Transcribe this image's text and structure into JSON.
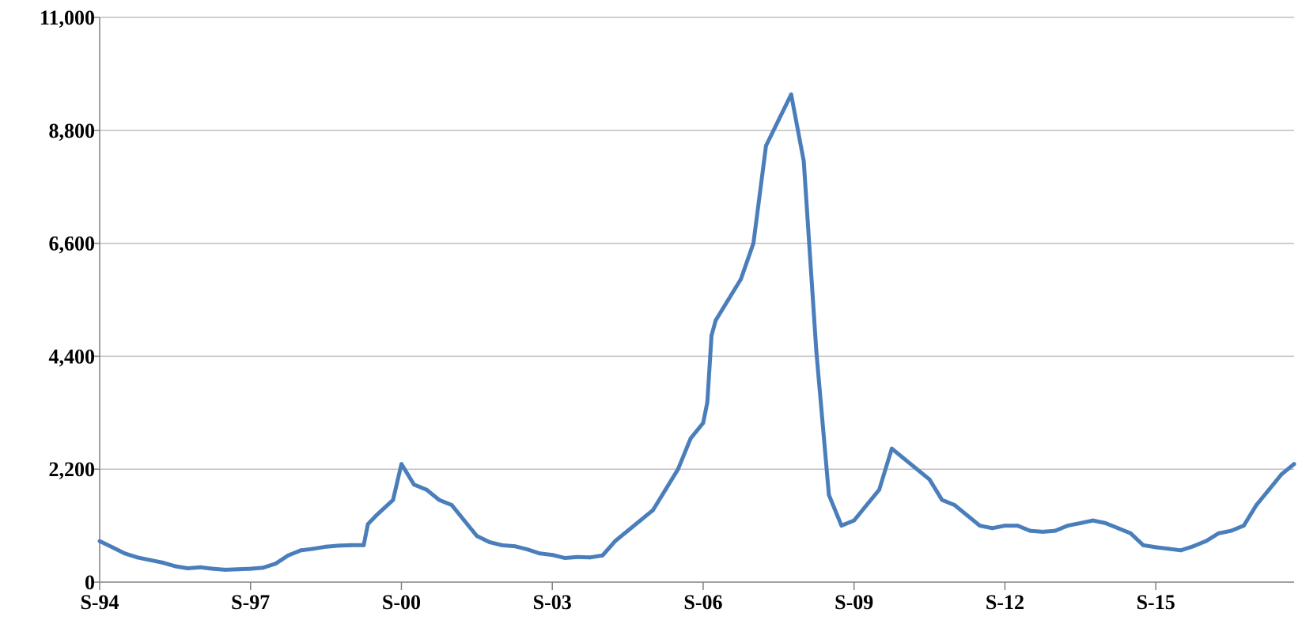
{
  "chart_data": {
    "type": "line",
    "title": "",
    "xlabel": "",
    "ylabel": "",
    "ylim": [
      0,
      11000
    ],
    "xlim": [
      "1994-09",
      "2018-06"
    ],
    "grid": {
      "horizontal": true,
      "vertical": false
    },
    "legend": "none",
    "y_ticks": [
      0,
      2200,
      4400,
      6600,
      8800,
      11000
    ],
    "y_tick_labels": [
      "0",
      "2,200",
      "4,400",
      "6,600",
      "8,800",
      "11,000"
    ],
    "x_ticks": [
      "1994-09",
      "1997-09",
      "2000-09",
      "2003-09",
      "2006-09",
      "2009-09",
      "2012-09",
      "2015-09"
    ],
    "x_tick_labels": [
      "S-94",
      "S-97",
      "S-00",
      "S-03",
      "S-06",
      "S-09",
      "S-12",
      "S-15"
    ],
    "colors": {
      "line": "#4a7ebb",
      "grid": "#bfbfbf",
      "axis": "#808080"
    },
    "series": [
      {
        "x": [
          "1994-09",
          "1994-12",
          "1995-03",
          "1995-06",
          "1995-09",
          "1995-12",
          "1996-03",
          "1996-06",
          "1996-09",
          "1996-12",
          "1997-03",
          "1997-06",
          "1997-09",
          "1997-12",
          "1998-03",
          "1998-06",
          "1998-09",
          "1998-12",
          "1999-03",
          "1999-06",
          "1999-09",
          "1999-12",
          "2000-01",
          "2000-03",
          "2000-05",
          "2000-07",
          "2000-09",
          "2000-12",
          "2001-03",
          "2001-06",
          "2001-09",
          "2001-12",
          "2002-03",
          "2002-06",
          "2002-09",
          "2002-12",
          "2003-03",
          "2003-06",
          "2003-09",
          "2003-12",
          "2004-03",
          "2004-06",
          "2004-09",
          "2004-12",
          "2005-03",
          "2005-06",
          "2005-09",
          "2005-12",
          "2006-03",
          "2006-06",
          "2006-09",
          "2006-10",
          "2006-11",
          "2006-12",
          "2007-03",
          "2007-06",
          "2007-09",
          "2007-12",
          "2008-03",
          "2008-06",
          "2008-09",
          "2008-12",
          "2009-03",
          "2009-06",
          "2009-09",
          "2009-12",
          "2010-03",
          "2010-06",
          "2010-09",
          "2010-12",
          "2011-03",
          "2011-06",
          "2011-09",
          "2011-12",
          "2012-03",
          "2012-06",
          "2012-09",
          "2012-12",
          "2013-03",
          "2013-06",
          "2013-09",
          "2013-12",
          "2014-03",
          "2014-06",
          "2014-09",
          "2014-12",
          "2015-03",
          "2015-06",
          "2015-09",
          "2015-12",
          "2016-03",
          "2016-06",
          "2016-09",
          "2016-12",
          "2017-03",
          "2017-06",
          "2017-09",
          "2017-12",
          "2018-03",
          "2018-06"
        ],
        "values": [
          800,
          680,
          560,
          480,
          430,
          380,
          310,
          270,
          290,
          260,
          240,
          250,
          260,
          280,
          360,
          520,
          620,
          650,
          690,
          710,
          720,
          720,
          1130,
          1300,
          1450,
          1600,
          2300,
          1900,
          1800,
          1600,
          1500,
          1200,
          900,
          780,
          720,
          700,
          640,
          560,
          530,
          470,
          490,
          480,
          520,
          800,
          1000,
          1200,
          1400,
          1800,
          2200,
          2800,
          3100,
          3500,
          4800,
          5100,
          5500,
          5900,
          6600,
          8500,
          9000,
          9500,
          8200,
          4500,
          1700,
          1100,
          1200,
          1500,
          1800,
          2600,
          2400,
          2200,
          2000,
          1600,
          1500,
          1300,
          1100,
          1050,
          1100,
          1100,
          1000,
          980,
          1000,
          1100,
          1150,
          1200,
          1150,
          1050,
          950,
          720,
          680,
          650,
          620,
          700,
          800,
          950,
          1000,
          1100,
          1500,
          1800,
          2100,
          2300
        ]
      }
    ]
  }
}
